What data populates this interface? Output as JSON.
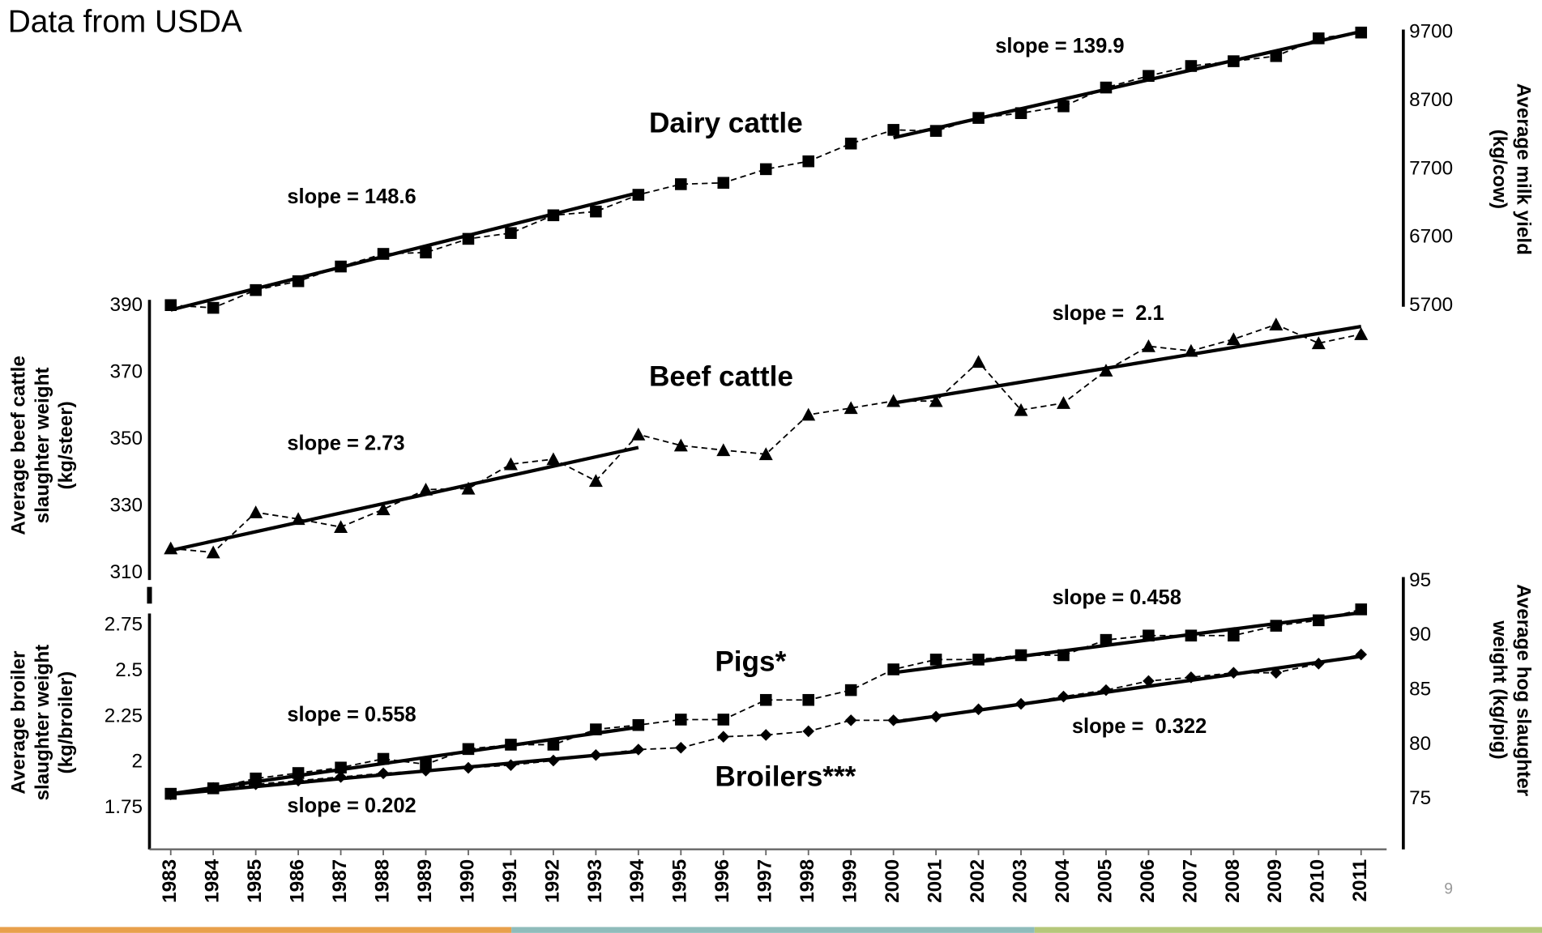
{
  "title": "Data from USDA",
  "page_number": "9",
  "x_axis": {
    "xlim": [
      1982.5,
      2011.6
    ],
    "xticks": [
      1983,
      1984,
      1985,
      1986,
      1987,
      1988,
      1989,
      1990,
      1991,
      1992,
      1993,
      1994,
      1995,
      1996,
      1997,
      1998,
      1999,
      2000,
      2001,
      2002,
      2003,
      2004,
      2005,
      2006,
      2007,
      2008,
      2009,
      2010,
      2011
    ]
  },
  "chart_data": [
    {
      "type": "line",
      "label": "Dairy cattle",
      "y_label": [
        "Average milk yield",
        "(kg/cow)"
      ],
      "marker": "square",
      "color": "#000000",
      "dashed": true,
      "ylim": [
        5700,
        9700
      ],
      "yticks": [
        5700,
        6700,
        7700,
        8700,
        9700
      ],
      "x": [
        1983,
        1984,
        1985,
        1986,
        1987,
        1988,
        1989,
        1990,
        1991,
        1992,
        1993,
        1994,
        1995,
        1996,
        1997,
        1998,
        1999,
        2000,
        2001,
        2002,
        2003,
        2004,
        2005,
        2006,
        2007,
        2008,
        2009,
        2010,
        2011
      ],
      "values": [
        5710,
        5670,
        5930,
        6060,
        6275,
        6460,
        6480,
        6680,
        6765,
        7025,
        7080,
        7325,
        7480,
        7500,
        7700,
        7815,
        8075,
        8275,
        8260,
        8450,
        8520,
        8620,
        8895,
        9065,
        9210,
        9280,
        9355,
        9615,
        9700
      ],
      "trends": [
        {
          "label": "slope = 148.6",
          "x": [
            1983,
            1994
          ],
          "values": [
            5640,
            7355
          ]
        },
        {
          "label": "slope = 139.9",
          "x": [
            2000,
            2011
          ],
          "values": [
            8160,
            9715
          ]
        }
      ]
    },
    {
      "type": "line",
      "label": "Beef cattle",
      "y_label": [
        "Average beef cattle",
        "slaughter weight",
        "(kg/steer)"
      ],
      "marker": "triangle",
      "color": "#000000",
      "dashed": true,
      "ylim": [
        310,
        390
      ],
      "yticks": [
        310,
        330,
        350,
        370,
        390
      ],
      "x": [
        1983,
        1984,
        1985,
        1986,
        1987,
        1988,
        1989,
        1990,
        1991,
        1992,
        1993,
        1994,
        1995,
        1996,
        1997,
        1998,
        1999,
        2000,
        2001,
        2002,
        2003,
        2004,
        2005,
        2006,
        2007,
        2008,
        2009,
        2010,
        2011
      ],
      "values": [
        317.4,
        316.2,
        328.2,
        326.2,
        323.8,
        329.1,
        335,
        335.3,
        342.6,
        344.1,
        337.6,
        351.5,
        348.2,
        346.8,
        345.6,
        357.4,
        359.4,
        361.5,
        361.5,
        373.2,
        358.8,
        360.9,
        370.6,
        377.9,
        376.5,
        380,
        384.4,
        378.8,
        381.5
      ],
      "trends": [
        {
          "label": "slope = 2.73",
          "x": [
            1983,
            1994
          ],
          "values": [
            316.8,
            347.6
          ]
        },
        {
          "label": "slope =  2.1",
          "x": [
            2000,
            2011
          ],
          "values": [
            360.9,
            383.8
          ]
        }
      ]
    },
    {
      "type": "line",
      "label": "Pigs*",
      "y_label": [
        "Average hog slaughter",
        "weight (kg/pig)"
      ],
      "marker": "square",
      "color": "#000000",
      "dashed": true,
      "ylim": [
        75,
        95
      ],
      "yticks": [
        75,
        80,
        85,
        90,
        95
      ],
      "x": [
        1983,
        1984,
        1985,
        1986,
        1987,
        1988,
        1989,
        1990,
        1991,
        1992,
        1993,
        1994,
        1995,
        1996,
        1997,
        1998,
        1999,
        2000,
        2001,
        2002,
        2003,
        2004,
        2005,
        2006,
        2007,
        2008,
        2009,
        2010,
        2011
      ],
      "values": [
        75.5,
        76,
        76.9,
        77.4,
        77.9,
        78.7,
        78.2,
        79.6,
        80,
        80,
        81.4,
        81.8,
        82.3,
        82.3,
        84.1,
        84.1,
        85,
        86.9,
        87.8,
        87.8,
        88.2,
        88.2,
        89.6,
        90,
        90,
        90,
        90.9,
        91.4,
        92.4
      ],
      "trends": [
        {
          "label": "slope = 0.558",
          "x": [
            1983,
            1994
          ],
          "values": [
            75.5,
            81.6
          ]
        },
        {
          "label": "slope = 0.458",
          "x": [
            2000,
            2011
          ],
          "values": [
            86.6,
            92.1
          ]
        }
      ]
    },
    {
      "type": "line",
      "label": "Broilers***",
      "y_label": [
        "Average broiler",
        "slaughter weight",
        "(kg/broiler)"
      ],
      "marker": "diamond",
      "color": "#000000",
      "dashed": true,
      "ylim": [
        1.75,
        2.75
      ],
      "yticks": [
        1.75,
        2,
        2.25,
        2.5,
        2.75
      ],
      "x": [
        1983,
        1984,
        1985,
        1986,
        1987,
        1988,
        1989,
        1990,
        1991,
        1992,
        1993,
        1994,
        1995,
        1996,
        1997,
        1998,
        1999,
        2000,
        2001,
        2002,
        2003,
        2004,
        2005,
        2006,
        2007,
        2008,
        2009,
        2010,
        2011
      ],
      "values": [
        1.825,
        1.86,
        1.88,
        1.9,
        1.92,
        1.94,
        1.955,
        1.97,
        1.985,
        2.01,
        2.04,
        2.07,
        2.08,
        2.14,
        2.15,
        2.17,
        2.23,
        2.23,
        2.25,
        2.29,
        2.32,
        2.36,
        2.395,
        2.445,
        2.465,
        2.49,
        2.49,
        2.54,
        2.59
      ],
      "trends": [
        {
          "label": "slope = 0.202",
          "x": [
            1983,
            1994
          ],
          "values": [
            1.825,
            2.06
          ]
        },
        {
          "label": "slope =  0.322",
          "x": [
            2000,
            2011
          ],
          "values": [
            2.22,
            2.58
          ]
        }
      ]
    }
  ]
}
